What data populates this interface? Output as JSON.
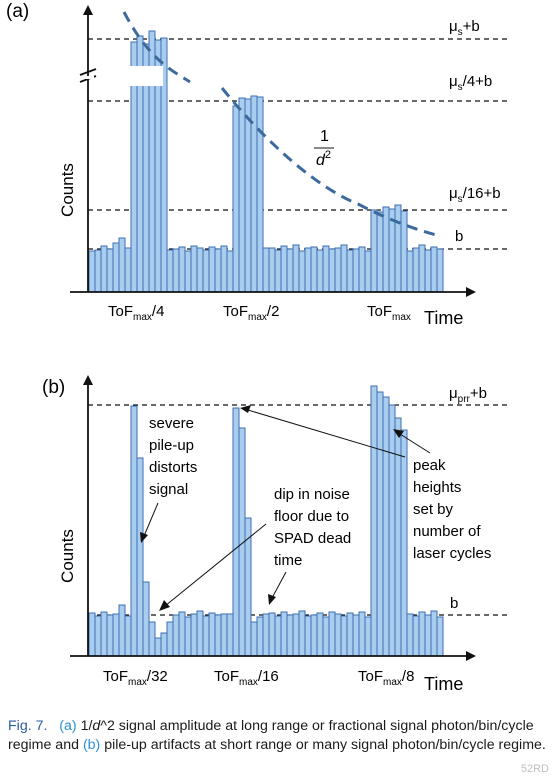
{
  "colors": {
    "bar_fill": "#a9cdee",
    "bar_stroke": "#3d6fb0",
    "curve": "#3d6a9c",
    "axis": "#111111",
    "caption_text": "#2c5d9e",
    "caption_link": "#2b8fd6"
  },
  "panel_a": {
    "label": "(a)",
    "ylabel": "Counts",
    "xlabel": "Time",
    "curve_label": {
      "num": "1",
      "den": "d",
      "exp": "2"
    },
    "levels": [
      {
        "base": "μ",
        "sub": "s",
        "rest": "+b"
      },
      {
        "base": "μ",
        "sub": "s",
        "rest": "/4+b"
      },
      {
        "base": "μ",
        "sub": "s",
        "rest": "/16+b"
      },
      {
        "base": "b",
        "sub": "",
        "rest": ""
      }
    ],
    "ticks": [
      {
        "pre": "ToF",
        "sub": "max",
        "post": "/4"
      },
      {
        "pre": "ToF",
        "sub": "max",
        "post": "/2"
      },
      {
        "pre": "ToF",
        "sub": "max",
        "post": ""
      }
    ]
  },
  "panel_b": {
    "label": "(b)",
    "ylabel": "Counts",
    "xlabel": "Time",
    "level_top": {
      "base": "μ",
      "sub": "prr",
      "rest": "+b"
    },
    "level_b": "b",
    "annotations": {
      "pileup": [
        "severe",
        "pile-up",
        "distorts",
        "signal"
      ],
      "dip": [
        "dip in noise",
        "floor due to",
        "SPAD dead",
        "time"
      ],
      "peak": [
        "peak",
        "heights",
        "set by",
        "number of",
        "laser cycles"
      ]
    },
    "ticks": [
      {
        "pre": "ToF",
        "sub": "max",
        "post": "/32"
      },
      {
        "pre": "ToF",
        "sub": "max",
        "post": "/16"
      },
      {
        "pre": "ToF",
        "sub": "max",
        "post": "/8"
      }
    ]
  },
  "caption": {
    "fig": "Fig. 7.",
    "a": "(a)",
    "t1": "1/",
    "d": "d",
    "t2": "^2 signal amplitude at long range or fractional signal photon/bin/cycle regime and",
    "b": "(b)",
    "t3": "pile-up artifacts at short range or many signal photon/bin/cycle regime."
  },
  "watermark": "52RD"
}
